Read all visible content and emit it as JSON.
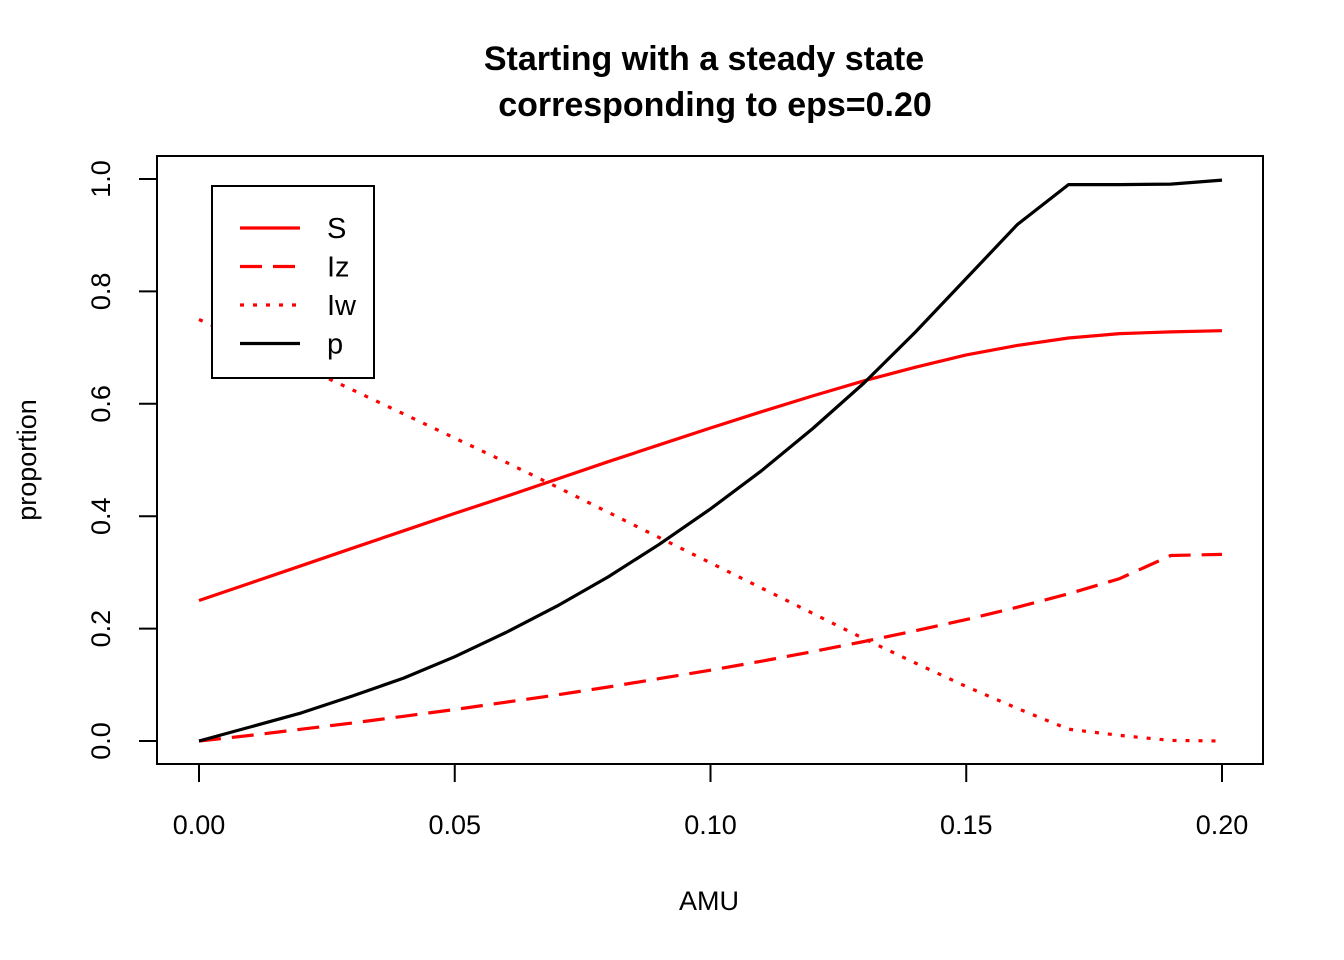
{
  "chart_data": {
    "type": "line",
    "title": [
      "Starting with a steady state",
      "corresponding to eps=0.20"
    ],
    "xlabel": "AMU",
    "ylabel": "proportion",
    "xlim": [
      0.0,
      0.2
    ],
    "ylim": [
      0.0,
      1.0
    ],
    "xticks": [
      "0.00",
      "0.05",
      "0.10",
      "0.15",
      "0.20"
    ],
    "yticks": [
      "0.0",
      "0.2",
      "0.4",
      "0.6",
      "0.8",
      "1.0"
    ],
    "grid": false,
    "legend_position": "top-left",
    "x": [
      0.0,
      0.01,
      0.02,
      0.03,
      0.04,
      0.05,
      0.06,
      0.07,
      0.08,
      0.09,
      0.1,
      0.11,
      0.12,
      0.13,
      0.14,
      0.15,
      0.16,
      0.17,
      0.18,
      0.19,
      0.2
    ],
    "series": [
      {
        "name": "S",
        "color": "#ff0000",
        "style": "solid",
        "values": [
          0.25,
          0.281,
          0.312,
          0.343,
          0.374,
          0.405,
          0.435,
          0.466,
          0.497,
          0.527,
          0.557,
          0.586,
          0.614,
          0.641,
          0.665,
          0.687,
          0.704,
          0.717,
          0.725,
          0.728,
          0.73
        ]
      },
      {
        "name": "Iz",
        "color": "#ff0000",
        "style": "dashed",
        "values": [
          0.0,
          0.01,
          0.021,
          0.032,
          0.044,
          0.056,
          0.069,
          0.082,
          0.096,
          0.111,
          0.126,
          0.142,
          0.159,
          0.177,
          0.196,
          0.216,
          0.238,
          0.262,
          0.289,
          0.33,
          0.332
        ]
      },
      {
        "name": "Iw",
        "color": "#ff0000",
        "style": "dotted",
        "values": [
          0.75,
          0.709,
          0.667,
          0.625,
          0.582,
          0.539,
          0.496,
          0.452,
          0.407,
          0.362,
          0.317,
          0.272,
          0.227,
          0.182,
          0.139,
          0.097,
          0.058,
          0.021,
          0.01,
          0.001,
          0.0
        ]
      },
      {
        "name": "p",
        "color": "#000000",
        "style": "solid",
        "values": [
          0.0,
          0.025,
          0.05,
          0.08,
          0.112,
          0.15,
          0.193,
          0.24,
          0.292,
          0.35,
          0.413,
          0.481,
          0.556,
          0.637,
          0.727,
          0.823,
          0.919,
          0.99,
          0.99,
          0.991,
          0.998
        ]
      }
    ]
  }
}
